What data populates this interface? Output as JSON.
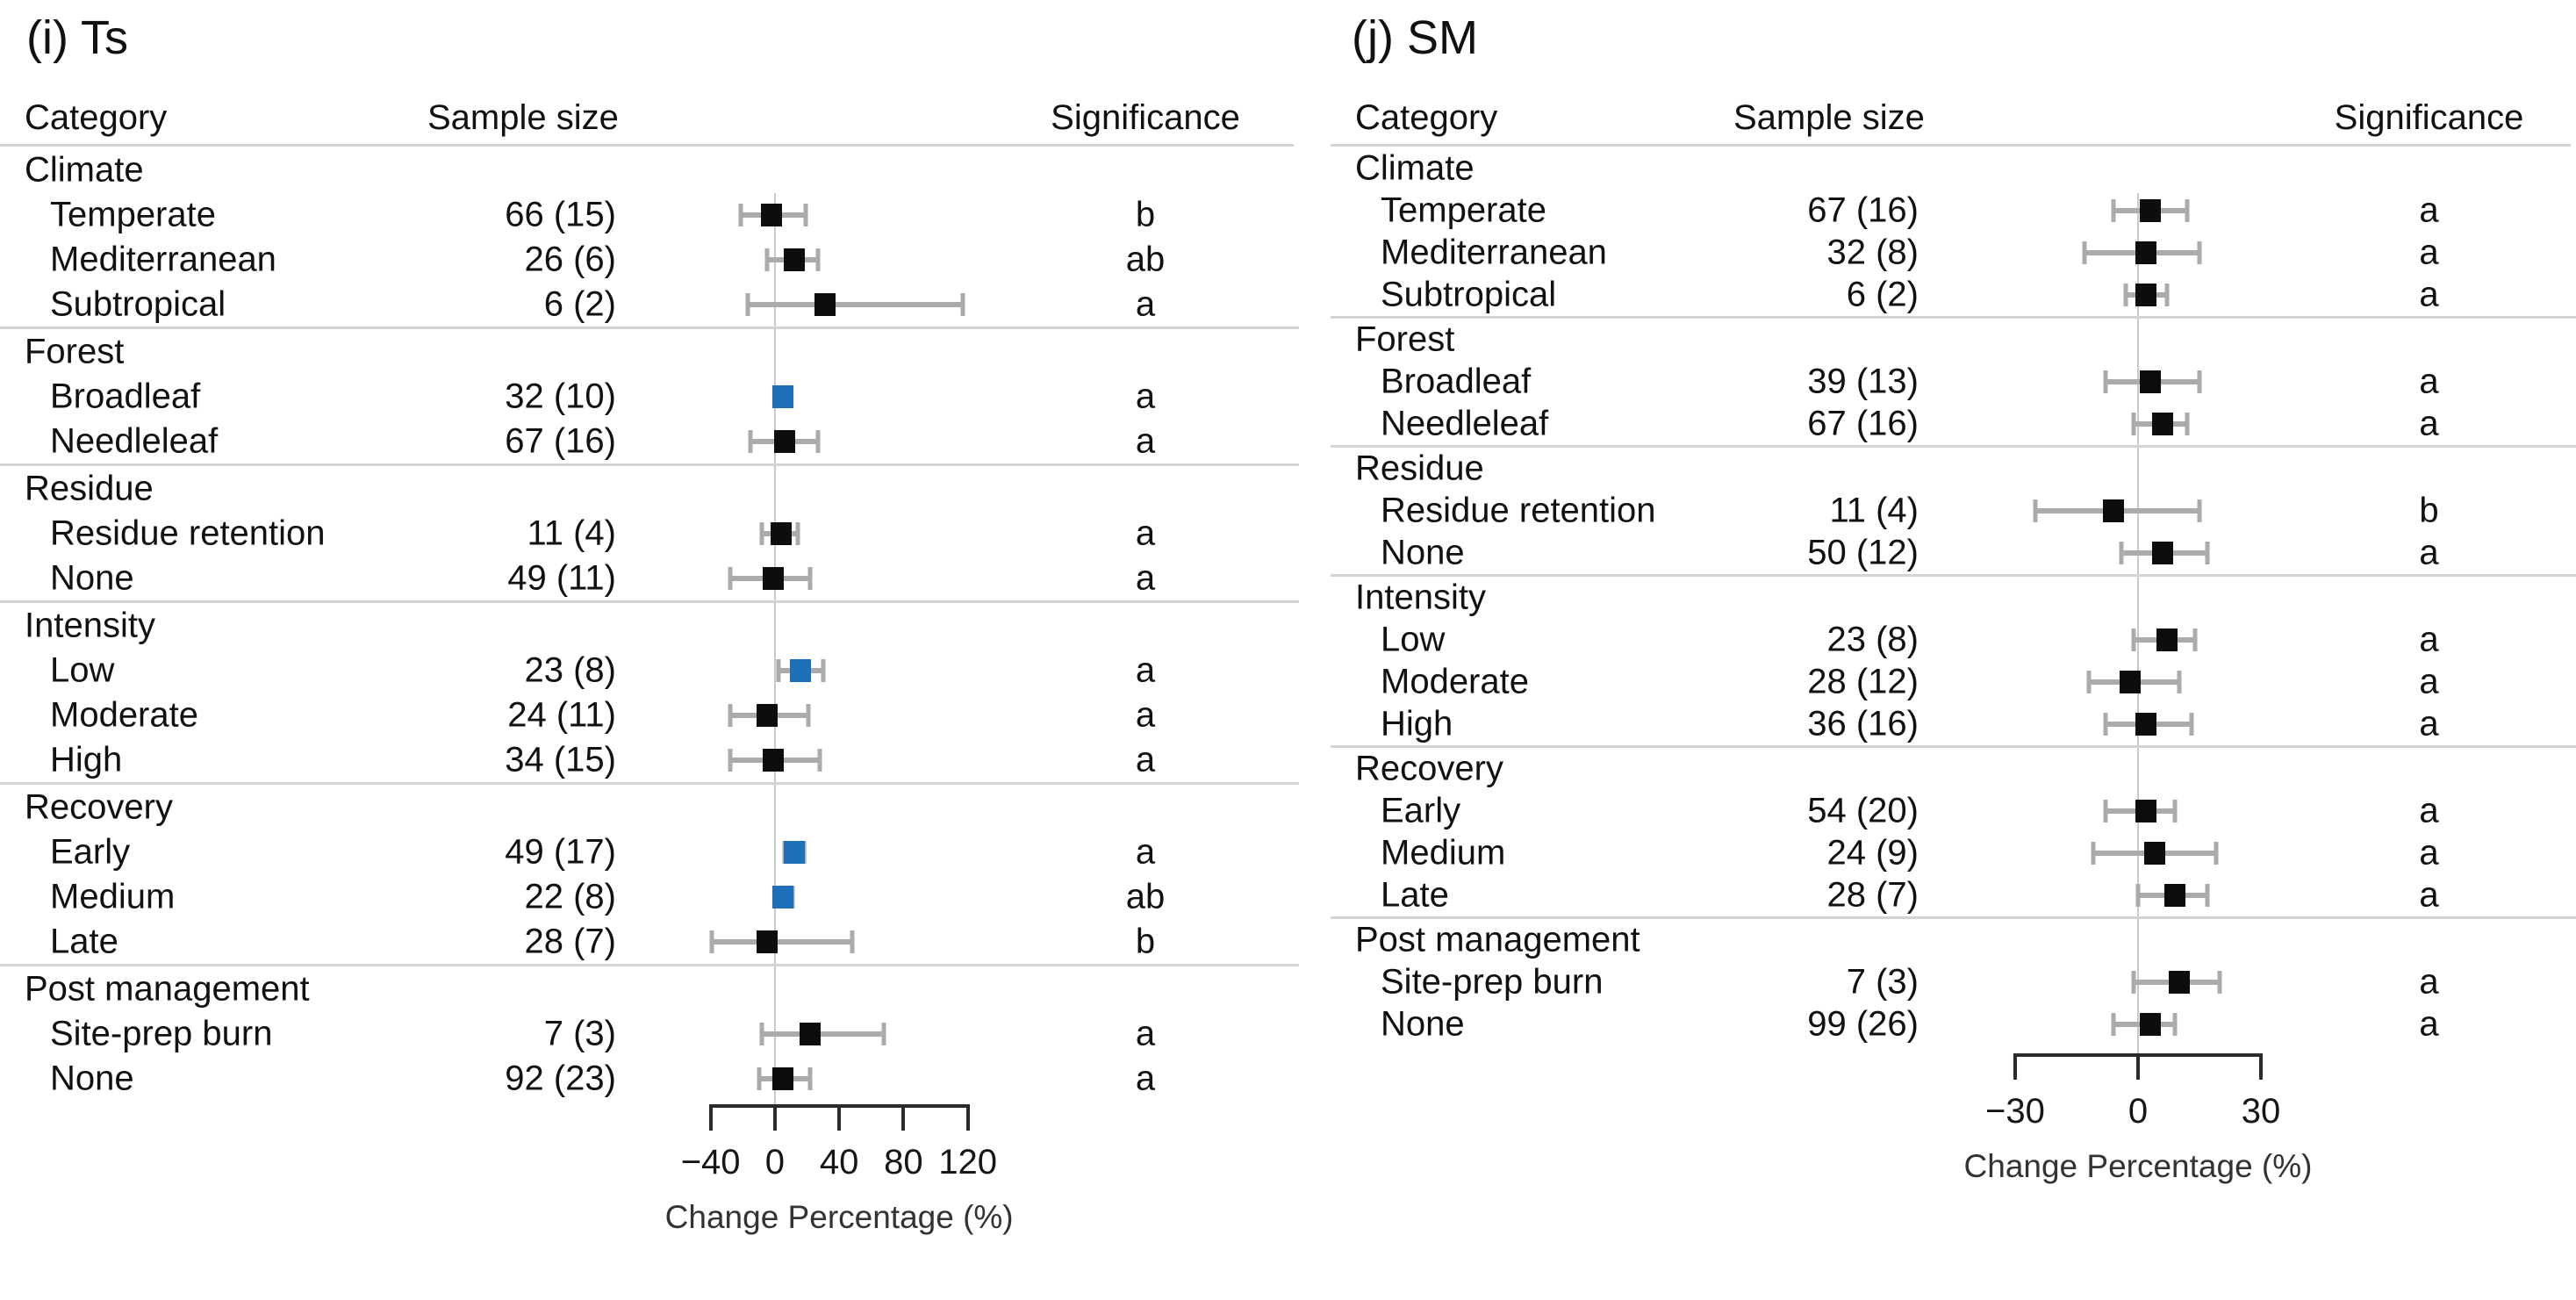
{
  "colors": {
    "marker_black": "#0d0d0d",
    "marker_blue": "#1c6fb8",
    "ci_bar": "#ababab",
    "rule": "#d4d4d4",
    "zero_line": "#c9c9c9"
  },
  "chart_data": [
    {
      "type": "forest",
      "panel_label": "(i) Ts",
      "xlabel": "Change Percentage (%)",
      "x_ticks": [
        -40,
        0,
        40,
        80,
        120
      ],
      "x_domain": [
        -60,
        142
      ],
      "columns": {
        "category": "Category",
        "sample_size": "Sample size",
        "significance": "Significance"
      },
      "groups": [
        {
          "name": "Climate",
          "rows": [
            {
              "category": "Temperate",
              "sample": "66 (15)",
              "mean": -2,
              "lo": -21,
              "hi": 19,
              "sig": "b",
              "color": "black"
            },
            {
              "category": "Mediterranean",
              "sample": "26 (6)",
              "mean": 12,
              "lo": -5,
              "hi": 27,
              "sig": "ab",
              "color": "black"
            },
            {
              "category": "Subtropical",
              "sample": "6 (2)",
              "mean": 31,
              "lo": -17,
              "hi": 117,
              "sig": "a",
              "color": "black"
            }
          ]
        },
        {
          "name": "Forest",
          "rows": [
            {
              "category": "Broadleaf",
              "sample": "32 (10)",
              "mean": 5,
              "lo": 0,
              "hi": 10,
              "sig": "a",
              "color": "blue"
            },
            {
              "category": "Needleleaf",
              "sample": "67 (16)",
              "mean": 6,
              "lo": -15,
              "hi": 27,
              "sig": "a",
              "color": "black"
            }
          ]
        },
        {
          "name": "Residue",
          "rows": [
            {
              "category": "Residue retention",
              "sample": "11 (4)",
              "mean": 4,
              "lo": -8,
              "hi": 14,
              "sig": "a",
              "color": "black"
            },
            {
              "category": "None",
              "sample": "49 (11)",
              "mean": -1,
              "lo": -28,
              "hi": 22,
              "sig": "a",
              "color": "black"
            }
          ]
        },
        {
          "name": "Intensity",
          "rows": [
            {
              "category": "Low",
              "sample": "23 (8)",
              "mean": 16,
              "lo": 2,
              "hi": 30,
              "sig": "a",
              "color": "blue"
            },
            {
              "category": "Moderate",
              "sample": "24 (11)",
              "mean": -5,
              "lo": -28,
              "hi": 21,
              "sig": "a",
              "color": "black"
            },
            {
              "category": "High",
              "sample": "34 (15)",
              "mean": -1,
              "lo": -28,
              "hi": 28,
              "sig": "a",
              "color": "black"
            }
          ]
        },
        {
          "name": "Recovery",
          "rows": [
            {
              "category": "Early",
              "sample": "49 (17)",
              "mean": 12,
              "lo": 6,
              "hi": 18,
              "sig": "a",
              "color": "blue"
            },
            {
              "category": "Medium",
              "sample": "22 (8)",
              "mean": 5,
              "lo": 0,
              "hi": 11,
              "sig": "ab",
              "color": "blue"
            },
            {
              "category": "Late",
              "sample": "28 (7)",
              "mean": -5,
              "lo": -39,
              "hi": 48,
              "sig": "b",
              "color": "black"
            }
          ]
        },
        {
          "name": "Post management",
          "rows": [
            {
              "category": "Site-prep burn",
              "sample": "7 (3)",
              "mean": 22,
              "lo": -8,
              "hi": 68,
              "sig": "a",
              "color": "black"
            },
            {
              "category": "None",
              "sample": "92 (23)",
              "mean": 5,
              "lo": -10,
              "hi": 22,
              "sig": "a",
              "color": "black"
            }
          ]
        }
      ]
    },
    {
      "type": "forest",
      "panel_label": "(j) SM",
      "xlabel": "Change Percentage (%)",
      "x_ticks": [
        -30,
        0,
        30
      ],
      "x_domain": [
        -45,
        45
      ],
      "columns": {
        "category": "Category",
        "sample_size": "Sample size",
        "significance": "Significance"
      },
      "groups": [
        {
          "name": "Climate",
          "rows": [
            {
              "category": "Temperate",
              "sample": "67 (16)",
              "mean": 3,
              "lo": -6,
              "hi": 12,
              "sig": "a",
              "color": "black"
            },
            {
              "category": "Mediterranean",
              "sample": "32 (8)",
              "mean": 2,
              "lo": -13,
              "hi": 15,
              "sig": "a",
              "color": "black"
            },
            {
              "category": "Subtropical",
              "sample": "6 (2)",
              "mean": 2,
              "lo": -3,
              "hi": 7,
              "sig": "a",
              "color": "black"
            }
          ]
        },
        {
          "name": "Forest",
          "rows": [
            {
              "category": "Broadleaf",
              "sample": "39 (13)",
              "mean": 3,
              "lo": -8,
              "hi": 15,
              "sig": "a",
              "color": "black"
            },
            {
              "category": "Needleleaf",
              "sample": "67 (16)",
              "mean": 6,
              "lo": -1,
              "hi": 12,
              "sig": "a",
              "color": "black"
            }
          ]
        },
        {
          "name": "Residue",
          "rows": [
            {
              "category": "Residue retention",
              "sample": "11 (4)",
              "mean": -6,
              "lo": -25,
              "hi": 15,
              "sig": "b",
              "color": "black"
            },
            {
              "category": "None",
              "sample": "50 (12)",
              "mean": 6,
              "lo": -4,
              "hi": 17,
              "sig": "a",
              "color": "black"
            }
          ]
        },
        {
          "name": "Intensity",
          "rows": [
            {
              "category": "Low",
              "sample": "23 (8)",
              "mean": 7,
              "lo": -1,
              "hi": 14,
              "sig": "a",
              "color": "black"
            },
            {
              "category": "Moderate",
              "sample": "28 (12)",
              "mean": -2,
              "lo": -12,
              "hi": 10,
              "sig": "a",
              "color": "black"
            },
            {
              "category": "High",
              "sample": "36 (16)",
              "mean": 2,
              "lo": -8,
              "hi": 13,
              "sig": "a",
              "color": "black"
            }
          ]
        },
        {
          "name": "Recovery",
          "rows": [
            {
              "category": "Early",
              "sample": "54 (20)",
              "mean": 2,
              "lo": -8,
              "hi": 9,
              "sig": "a",
              "color": "black"
            },
            {
              "category": "Medium",
              "sample": "24 (9)",
              "mean": 4,
              "lo": -11,
              "hi": 19,
              "sig": "a",
              "color": "black"
            },
            {
              "category": "Late",
              "sample": "28 (7)",
              "mean": 9,
              "lo": 0,
              "hi": 17,
              "sig": "a",
              "color": "black"
            }
          ]
        },
        {
          "name": "Post management",
          "rows": [
            {
              "category": "Site-prep burn",
              "sample": "7 (3)",
              "mean": 10,
              "lo": -1,
              "hi": 20,
              "sig": "a",
              "color": "black"
            },
            {
              "category": "None",
              "sample": "99 (26)",
              "mean": 3,
              "lo": -6,
              "hi": 9,
              "sig": "a",
              "color": "black"
            }
          ]
        }
      ]
    }
  ]
}
